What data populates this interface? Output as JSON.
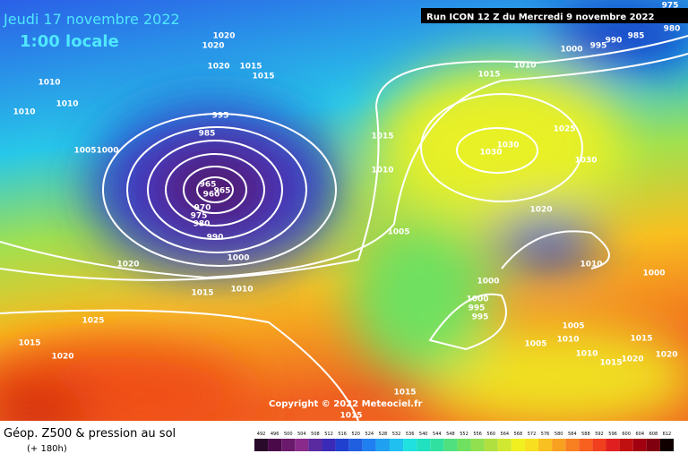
{
  "header": {
    "date": "Jeudi 17 novembre 2022",
    "time": "1:00 locale",
    "run": "Run ICON 12 Z du Mercredi 9 novembre 2022"
  },
  "copyright": "Copyright © 2022 Meteociel.fr",
  "footer": {
    "title": "Géop. Z500 & pression au sol",
    "lead": "(+ 180h)"
  },
  "isobar_labels": [
    "1020",
    "1020",
    "1020",
    "1015",
    "1015",
    "1010",
    "1010",
    "1010",
    "995",
    "985",
    "1005",
    "1000",
    "965",
    "960",
    "965",
    "970",
    "975",
    "980",
    "990",
    "1000",
    "1020",
    "1015",
    "1010",
    "1025",
    "1015",
    "1020",
    "1010",
    "1015",
    "1015",
    "1010",
    "1005",
    "1000",
    "995",
    "990",
    "985",
    "980",
    "975",
    "1030",
    "1030",
    "1025",
    "1030",
    "1020",
    "1010",
    "1000",
    "1000",
    "1000",
    "995",
    "995",
    "1005",
    "1005",
    "1010",
    "1010",
    "1015",
    "1015",
    "1020",
    "1020",
    "1015",
    "1015"
  ],
  "scale_labels": [
    "492",
    "496",
    "500",
    "504",
    "508",
    "512",
    "516",
    "520",
    "524",
    "528",
    "532",
    "536",
    "540",
    "544",
    "548",
    "552",
    "556",
    "560",
    "564",
    "568",
    "572",
    "576",
    "580",
    "584",
    "588",
    "592",
    "596",
    "600",
    "604",
    "608",
    "612"
  ],
  "scale_colors": [
    "#2a0a2a",
    "#4a0a4a",
    "#6a1a6a",
    "#8a2a8a",
    "#5a2aa0",
    "#3a2ab8",
    "#2040d0",
    "#2060e0",
    "#2080f0",
    "#20a0f0",
    "#20c0f0",
    "#20e0e0",
    "#20e0c0",
    "#30e0a0",
    "#50e080",
    "#70e060",
    "#90e050",
    "#b0e040",
    "#d0e830",
    "#f0f020",
    "#f8e020",
    "#f8c020",
    "#f8a020",
    "#f88020",
    "#f86020",
    "#f04020",
    "#e02020",
    "#c01010",
    "#a00010",
    "#800010",
    "#100000"
  ]
}
